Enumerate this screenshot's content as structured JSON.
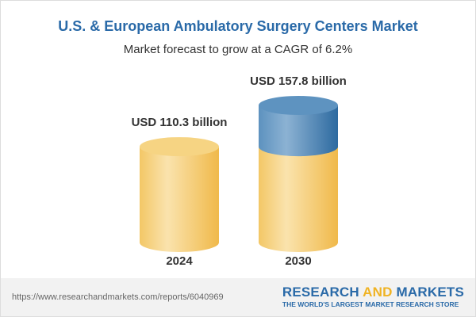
{
  "chart_data": {
    "type": "bar",
    "title": "U.S. & European Ambulatory Surgery Centers Market",
    "subtitle": "Market forecast to grow at a CAGR of 6.2%",
    "categories": [
      "2024",
      "2030"
    ],
    "values": [
      110.3,
      157.8
    ],
    "data_labels": [
      "USD 110.3 billion",
      "USD 157.8 billion"
    ],
    "unit": "USD billion",
    "colors": {
      "base": "#f2c15c",
      "growth": "#3f7fb5",
      "title": "#2a6aa8"
    }
  },
  "footer": {
    "url": "https://www.researchandmarkets.com/reports/6040969",
    "logo_part1": "RESEARCH ",
    "logo_and": "AND",
    "logo_part2": " MARKETS",
    "tagline": "THE WORLD'S LARGEST MARKET RESEARCH STORE"
  }
}
